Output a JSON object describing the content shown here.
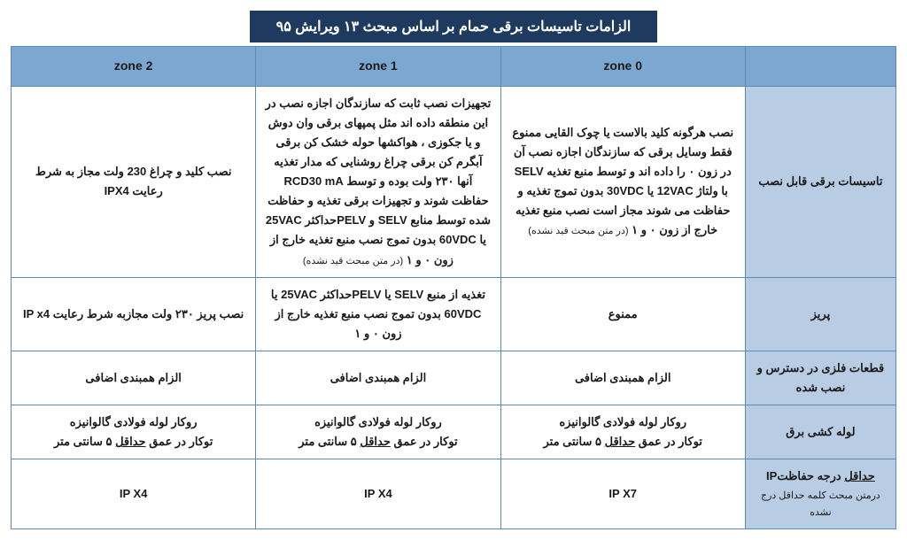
{
  "title": "الزامات تاسیسات برقی حمام بر اساس مبحث ۱۳ ویرایش ۹۵",
  "colors": {
    "title_bg": "#1e3a5f",
    "title_text": "#ffffff",
    "header_bg": "#7ba7d0",
    "rowlabel_bg": "#b8cce4",
    "border": "#5b8bb8",
    "text": "#1a1a1a",
    "page_bg": "#ffffff"
  },
  "headers": {
    "zone0": "zone 0",
    "zone1": "zone 1",
    "zone2": "zone 2",
    "rowlabel": ""
  },
  "rows": {
    "r1": {
      "label": "تاسیسات برقی قابل نصب",
      "zone0": "نصب هرگونه کلید بالاست یا چوک القایی ممنوع\nفقط وسایل برقی که سازندگان اجازه نصب آن در زون ۰ را داده اند و توسط منبع تغذیه SELV با ولتاژ 12VAC یا 30VDC بدون تموج تغذیه و حفاظت می شوند مجاز است\nنصب منبع تغذیه خارج از زون ۰ و ۱",
      "zone0_note": "(در متن مبحث قید نشده)",
      "zone1": "تجهیزات نصب ثابت که سازندگان اجازه نصب در این منطقه داده اند مثل پمپهای برقی وان دوش و یا جکوزی ، هواکشها حوله خشک کن برقی آبگرم کن برقی چراغ روشنایی که مدار تغذیه آنها ۲۳۰ ولت بوده و توسط RCD30 mA حفاظت شوند و تجهیزات برقی تغذیه و حفاظت شده توسط منابع SELV و PELVحداکثر 25VAC یا 60VDC بدون تموج\nنصب منبع تغذیه خارج از زون ۰ و ۱",
      "zone1_note": "(در متن مبحث قید نشده)",
      "zone2": "نصب کلید و چراغ 230 ولت مجاز به شرط رعایت IPX4"
    },
    "r2": {
      "label": "پریز",
      "zone0": "ممنوع",
      "zone1": "تغذیه از منبع SELV یا PELVحداکثر 25VAC یا 60VDC بدون تموج\nنصب منبع تغذیه خارج از زون ۰ و ۱",
      "zone2": "نصب پریز ۲۳۰ ولت مجازبه شرط رعایت IP x4"
    },
    "r3": {
      "label": "قطعات فلزی در دسترس و نصب شده",
      "zone0": "الزام همبندی اضافی",
      "zone1": "الزام همبندی اضافی",
      "zone2": "الزام همبندی اضافی"
    },
    "r4": {
      "label": "لوله کشی برق",
      "zone0_a": "روکار لوله فولادی گالوانیزه",
      "zone0_b_pre": "توکار در عمق ",
      "zone0_b_u": "حداقل",
      "zone0_b_post": " ۵ سانتی متر",
      "zone1_a": "روکار لوله فولادی گالوانیزه",
      "zone1_b_pre": "توکار در عمق ",
      "zone1_b_u": "حداقل",
      "zone1_b_post": " ۵ سانتی متر",
      "zone2_a": "روکار لوله فولادی گالوانیزه",
      "zone2_b_pre": "توکار در عمق ",
      "zone2_b_u": "حداقل",
      "zone2_b_post": " ۵ سانتی متر"
    },
    "r5": {
      "label_u": "حداقل",
      "label_rest": " درجه حفاظتIP",
      "label_note": "درمتن مبحث کلمه حداقل درج نشده",
      "zone0": "IP X7",
      "zone1": "IP X4",
      "zone2": "IP X4"
    }
  }
}
